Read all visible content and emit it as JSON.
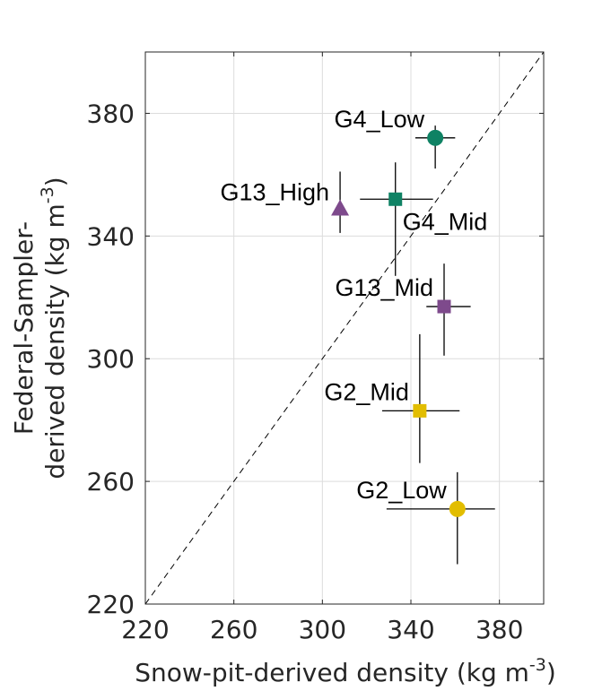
{
  "chart_data": {
    "type": "scatter",
    "title": "",
    "xlabel": "Snow-pit-derived density (kg m",
    "xlabel_sup": "-3",
    "xlabel_end": ")",
    "ylabel_line1": "Federal-Sampler-",
    "ylabel_line2": "derived density (kg m",
    "ylabel_sup": "-3",
    "ylabel_end": ")",
    "xlim": [
      220,
      400
    ],
    "ylim": [
      220,
      400
    ],
    "xticks": [
      220,
      260,
      300,
      340,
      380
    ],
    "yticks": [
      220,
      260,
      300,
      340,
      380
    ],
    "grid": true,
    "reference_line": "1:1 dashed",
    "points": [
      {
        "label": "G4_Low",
        "x": 351,
        "y": 372,
        "x_err": [
          342,
          360
        ],
        "y_err": [
          362,
          376
        ],
        "marker": "circle",
        "color": "#0f8264",
        "label_pos": "upper-left"
      },
      {
        "label": "G13_High",
        "x": 308,
        "y": 349,
        "x_err": [
          308,
          308
        ],
        "y_err": [
          341,
          361
        ],
        "marker": "triangle",
        "color": "#7e4a8c",
        "label_pos": "left"
      },
      {
        "label": "G4_Mid",
        "x": 333,
        "y": 352,
        "x_err": [
          317,
          350
        ],
        "y_err": [
          327,
          364
        ],
        "marker": "square",
        "color": "#0f8264",
        "label_pos": "lower-right"
      },
      {
        "label": "G13_Mid",
        "x": 355,
        "y": 317,
        "x_err": [
          347,
          367
        ],
        "y_err": [
          301,
          331
        ],
        "marker": "square",
        "color": "#7e4a8c",
        "label_pos": "upper-left"
      },
      {
        "label": "G2_Mid",
        "x": 344,
        "y": 283,
        "x_err": [
          327,
          362
        ],
        "y_err": [
          266,
          308
        ],
        "marker": "square",
        "color": "#e2bd00",
        "label_pos": "upper-left"
      },
      {
        "label": "G2_Low",
        "x": 361,
        "y": 251,
        "x_err": [
          329,
          378
        ],
        "y_err": [
          233,
          263
        ],
        "marker": "circle",
        "color": "#e2bd00",
        "label_pos": "upper-left"
      }
    ]
  }
}
